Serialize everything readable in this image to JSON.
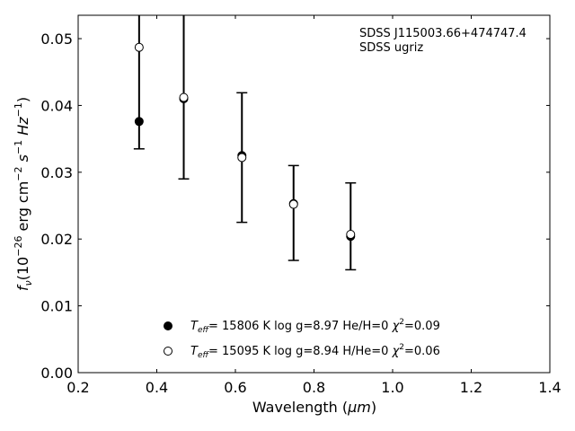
{
  "chart_data": {
    "type": "scatter",
    "title": "",
    "xlabel": "Wavelength",
    "xlabel_unit": "μm",
    "ylabel_parts": {
      "f": "f",
      "nu": "ν",
      "open": "(10",
      "exp_power": "−26",
      "mid": " erg cm",
      "exp_cm": "−2",
      "s": " s",
      "exp_s": "−1",
      "hz": " Hz",
      "exp_hz": "−1",
      "close": ")"
    },
    "xlim": [
      0.2,
      1.4
    ],
    "ylim": [
      0.0,
      0.0535
    ],
    "xticks": [
      0.2,
      0.4,
      0.6,
      0.8,
      1.0,
      1.2,
      1.4
    ],
    "xtick_labels": [
      "0.2",
      "0.4",
      "0.6",
      "0.8",
      "1.0",
      "1.2",
      "1.4"
    ],
    "yticks": [
      0.0,
      0.01,
      0.02,
      0.03,
      0.04,
      0.05
    ],
    "ytick_labels": [
      "0.00",
      "0.01",
      "0.02",
      "0.03",
      "0.04",
      "0.05"
    ],
    "annotation": [
      "SDSS J115003.66+474747.4",
      "SDSS ugriz"
    ],
    "observed": {
      "x": [
        0.3551,
        0.4686,
        0.6166,
        0.748,
        0.8932
      ],
      "y": [
        0.0436,
        0.0427,
        0.0322,
        0.0239,
        0.0219
      ],
      "yerr": [
        0.0101,
        0.0137,
        0.0097,
        0.0071,
        0.0065
      ]
    },
    "series": [
      {
        "marker": "filled",
        "x": [
          0.3551,
          0.4686,
          0.6166,
          0.748,
          0.8932
        ],
        "y": [
          0.0376,
          0.041,
          0.0325,
          0.0253,
          0.0204
        ],
        "label": {
          "teff_sym": "T",
          "teff_sub": "eff",
          "teff_val": "= 15806 K  log g=8.97  He/H=0  ",
          "chi_sym": "χ",
          "chi_sup": "2",
          "chi_val": "=0.09"
        }
      },
      {
        "marker": "open",
        "x": [
          0.3551,
          0.4686,
          0.6166,
          0.748,
          0.8932
        ],
        "y": [
          0.0487,
          0.0412,
          0.0322,
          0.0252,
          0.0207
        ],
        "label": {
          "teff_sym": "T",
          "teff_sub": "eff",
          "teff_val": "= 15095 K  log g=8.94  H/He=0  ",
          "chi_sym": "χ",
          "chi_sup": "2",
          "chi_val": "=0.06"
        }
      }
    ],
    "legend_position": "lower-center",
    "grid": false
  }
}
